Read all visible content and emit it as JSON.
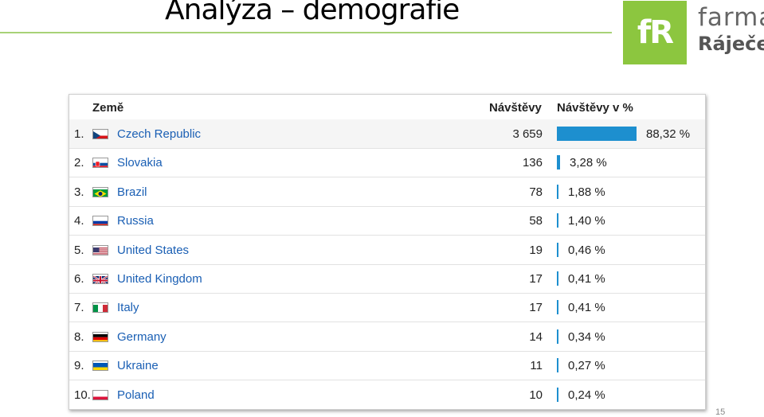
{
  "slide": {
    "title": "Analýza – demografie",
    "page_number": "15"
  },
  "logo": {
    "mark": "fR",
    "line1": "farma",
    "line2": "Ráječek",
    "color": "#8cc63f"
  },
  "table": {
    "headers": {
      "country": "Země",
      "visits": "Návštěvy",
      "visits_pct": "Návštěvy v %"
    },
    "bar_color": "#1d8fcf",
    "rows": [
      {
        "rank": "1.",
        "country": "Czech Republic",
        "flag": "flag-cz",
        "visits": "3 659",
        "pct": "88,32 %",
        "share": 0.8832
      },
      {
        "rank": "2.",
        "country": "Slovakia",
        "flag": "flag-sk",
        "visits": "136",
        "pct": "3,28 %",
        "share": 0.0328
      },
      {
        "rank": "3.",
        "country": "Brazil",
        "flag": "flag-br",
        "visits": "78",
        "pct": "1,88 %",
        "share": 0.0188
      },
      {
        "rank": "4.",
        "country": "Russia",
        "flag": "flag-ru",
        "visits": "58",
        "pct": "1,40 %",
        "share": 0.014
      },
      {
        "rank": "5.",
        "country": "United States",
        "flag": "flag-us",
        "visits": "19",
        "pct": "0,46 %",
        "share": 0.0046
      },
      {
        "rank": "6.",
        "country": "United Kingdom",
        "flag": "flag-gb",
        "visits": "17",
        "pct": "0,41 %",
        "share": 0.0041
      },
      {
        "rank": "7.",
        "country": "Italy",
        "flag": "flag-it",
        "visits": "17",
        "pct": "0,41 %",
        "share": 0.0041
      },
      {
        "rank": "8.",
        "country": "Germany",
        "flag": "flag-de",
        "visits": "14",
        "pct": "0,34 %",
        "share": 0.0034
      },
      {
        "rank": "9.",
        "country": "Ukraine",
        "flag": "flag-ua",
        "visits": "11",
        "pct": "0,27 %",
        "share": 0.0027
      },
      {
        "rank": "10.",
        "country": "Poland",
        "flag": "flag-pl",
        "visits": "10",
        "pct": "0,24 %",
        "share": 0.0024
      }
    ]
  }
}
